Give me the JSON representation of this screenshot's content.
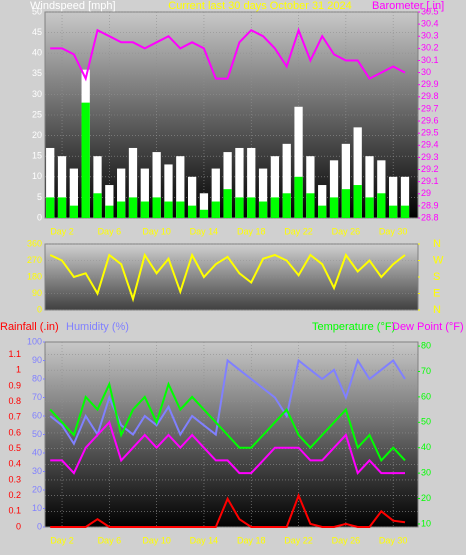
{
  "chart_data": [
    {
      "type": "line",
      "title": "Current last 30 days October 31 2024",
      "ylabel": "Windspeed [mph]",
      "y2label": "Barometer [.in]",
      "x": [
        1,
        2,
        3,
        4,
        5,
        6,
        7,
        8,
        9,
        10,
        11,
        12,
        13,
        14,
        15,
        16,
        17,
        18,
        19,
        20,
        21,
        22,
        23,
        24,
        25,
        26,
        27,
        28,
        29,
        30,
        31
      ],
      "xlim": [
        0.56,
        32.1
      ],
      "xticks": [
        {
          "value": 2,
          "label": "Day 2"
        },
        {
          "value": 6,
          "label": "Day 6"
        },
        {
          "value": 10,
          "label": "Day 10"
        },
        {
          "value": 14,
          "label": "Day 14"
        },
        {
          "value": 18,
          "label": "Day 18"
        },
        {
          "value": 22,
          "label": "Day 22"
        },
        {
          "value": 26,
          "label": "Day 26"
        },
        {
          "value": 30,
          "label": "Day 30"
        }
      ],
      "ylim": [
        0,
        50
      ],
      "yticks": [
        0,
        5,
        10,
        15,
        20,
        25,
        30,
        35,
        40,
        45,
        50
      ],
      "ycolor": "#ffffff",
      "y2lim": [
        28.8,
        30.5
      ],
      "y2ticks": [
        28.8,
        28.9,
        29,
        29.1,
        29.2,
        29.3,
        29.4,
        29.5,
        29.6,
        29.7,
        29.8,
        29.9,
        30,
        30.1,
        30.2,
        30.3,
        30.4,
        30.5
      ],
      "y2color": "#ff00ff",
      "grid": true,
      "series": [
        {
          "type": "bar",
          "color": "#ffffff",
          "values": [
            17,
            15,
            12,
            36,
            15,
            8,
            12,
            17,
            12,
            16,
            13,
            15,
            10,
            6,
            12,
            16,
            17,
            17,
            12,
            15,
            18,
            27,
            15,
            8,
            14,
            18,
            22,
            15,
            14,
            10,
            10
          ]
        },
        {
          "type": "bar",
          "color": "#00ff00",
          "values": [
            5,
            5,
            3,
            28,
            6,
            3,
            4,
            5,
            4,
            5,
            4,
            4,
            3,
            2,
            4,
            7,
            5,
            5,
            4,
            5,
            6,
            10,
            6,
            3,
            5,
            7,
            8,
            5,
            6,
            3,
            3
          ]
        },
        {
          "type": "line",
          "axis": "y2",
          "color": "#ff00ff",
          "values": [
            30.2,
            30.2,
            30.15,
            29.95,
            30.35,
            30.3,
            30.25,
            30.25,
            30.2,
            30.25,
            30.3,
            30.2,
            30.25,
            30.2,
            29.95,
            29.95,
            30.25,
            30.35,
            30.3,
            30.2,
            30.05,
            30.35,
            30.1,
            30.3,
            30.15,
            30.1,
            30.1,
            29.95,
            30.0,
            30.05,
            30.0
          ]
        }
      ]
    },
    {
      "type": "line",
      "x": [
        1,
        2,
        3,
        4,
        5,
        6,
        7,
        8,
        9,
        10,
        11,
        12,
        13,
        14,
        15,
        16,
        17,
        18,
        19,
        20,
        21,
        22,
        23,
        24,
        25,
        26,
        27,
        28,
        29,
        30,
        31
      ],
      "xlim": [
        0.56,
        32.1
      ],
      "ylim": [
        0,
        360
      ],
      "yticks": [
        0,
        90,
        180,
        270,
        360
      ],
      "ycolor": "#ffff00",
      "y2lim": [
        0,
        360
      ],
      "y2ticks": [
        {
          "value": 0,
          "label": "N"
        },
        {
          "value": 90,
          "label": "E"
        },
        {
          "value": 180,
          "label": "S"
        },
        {
          "value": 270,
          "label": "W"
        },
        {
          "value": 360,
          "label": "N"
        }
      ],
      "y2color": "#ffff00",
      "grid": true,
      "series": [
        {
          "type": "line",
          "color": "#ffff00",
          "values": [
            300,
            270,
            180,
            200,
            90,
            300,
            250,
            60,
            300,
            200,
            280,
            100,
            300,
            180,
            250,
            290,
            200,
            150,
            280,
            300,
            270,
            190,
            300,
            250,
            120,
            300,
            210,
            270,
            180,
            250,
            300
          ]
        }
      ]
    },
    {
      "type": "line",
      "x": [
        1,
        2,
        3,
        4,
        5,
        6,
        7,
        8,
        9,
        10,
        11,
        12,
        13,
        14,
        15,
        16,
        17,
        18,
        19,
        20,
        21,
        22,
        23,
        24,
        25,
        26,
        27,
        28,
        29,
        30,
        31
      ],
      "xlim": [
        0.56,
        32.1
      ],
      "xticks": [
        {
          "value": 2,
          "label": "Day 2"
        },
        {
          "value": 6,
          "label": "Day 6"
        },
        {
          "value": 10,
          "label": "Day 10"
        },
        {
          "value": 14,
          "label": "Day 14"
        },
        {
          "value": 18,
          "label": "Day 18"
        },
        {
          "value": 22,
          "label": "Day 22"
        },
        {
          "value": 26,
          "label": "Day 26"
        },
        {
          "value": 30,
          "label": "Day 30"
        }
      ],
      "ylim": [
        0,
        1.18
      ],
      "yticks": [
        0,
        0.1,
        0.2,
        0.3,
        0.4,
        0.5,
        0.6,
        0.7,
        0.8,
        0.9,
        1,
        1.1
      ],
      "ycolor": "#ff0000",
      "y3lim": [
        0,
        100
      ],
      "y3ticks": [
        0,
        10,
        20,
        30,
        40,
        50,
        60,
        70,
        80,
        90,
        100
      ],
      "y3color": "#8080ff",
      "y2lim": [
        8.8,
        81.6
      ],
      "y2ticks": [
        10,
        20,
        30,
        40,
        50,
        60,
        70,
        80
      ],
      "y2color": "#00ff00",
      "grid": true,
      "series": [
        {
          "name": "Rainfall (.in)",
          "type": "line",
          "color": "#ff0000",
          "values": [
            0,
            0,
            0,
            0,
            0.05,
            0,
            0,
            0,
            0,
            0,
            0,
            0,
            0,
            0,
            0,
            0.18,
            0.05,
            0,
            0,
            0,
            0,
            0.2,
            0.02,
            0,
            0,
            0.02,
            0,
            0,
            0.1,
            0.04,
            0.03
          ]
        },
        {
          "name": "Humidity (%)",
          "type": "line",
          "axis": "y3",
          "color": "#8080ff",
          "values": [
            60,
            55,
            45,
            60,
            50,
            70,
            55,
            50,
            60,
            55,
            65,
            50,
            60,
            55,
            50,
            90,
            85,
            80,
            75,
            70,
            60,
            90,
            85,
            80,
            85,
            70,
            90,
            80,
            85,
            90,
            80
          ]
        },
        {
          "name": "Temperature (°F)",
          "type": "line",
          "axis": "y2",
          "color": "#00ff00",
          "values": [
            55,
            50,
            45,
            60,
            55,
            65,
            45,
            55,
            60,
            50,
            65,
            55,
            60,
            55,
            50,
            45,
            40,
            40,
            45,
            50,
            55,
            45,
            40,
            45,
            50,
            55,
            40,
            45,
            35,
            40,
            35
          ]
        },
        {
          "name": "Dew Point (°F)",
          "type": "line",
          "axis": "y2",
          "color": "#ff00ff",
          "values": [
            35,
            35,
            30,
            40,
            45,
            50,
            35,
            40,
            45,
            40,
            45,
            40,
            45,
            40,
            35,
            35,
            30,
            30,
            35,
            40,
            40,
            40,
            35,
            35,
            40,
            45,
            30,
            35,
            30,
            30,
            30
          ]
        }
      ]
    }
  ]
}
